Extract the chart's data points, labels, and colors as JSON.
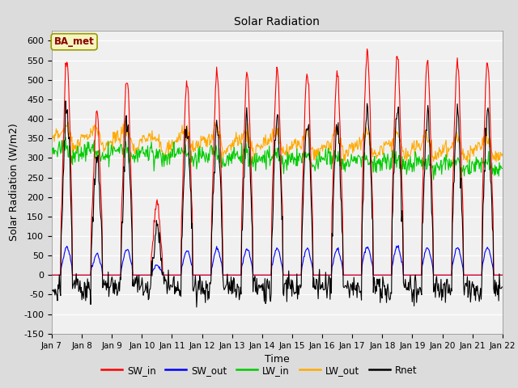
{
  "title": "Solar Radiation",
  "xlabel": "Time",
  "ylabel": "Solar Radiation (W/m2)",
  "ylim": [
    -150,
    625
  ],
  "num_days": 15,
  "annotation": "BA_met",
  "colors": {
    "SW_in": "#ff0000",
    "SW_out": "#0000ff",
    "LW_in": "#00cc00",
    "LW_out": "#ffaa00",
    "Rnet": "#000000"
  },
  "background_color": "#dcdcdc",
  "plot_bg": "#f0f0f0",
  "linewidth": 0.8,
  "legend_labels": [
    "SW_in",
    "SW_out",
    "LW_in",
    "LW_out",
    "Rnet"
  ],
  "SW_in_peaks": [
    550,
    415,
    510,
    178,
    490,
    520,
    515,
    525,
    515,
    520,
    575,
    565,
    550,
    550,
    550
  ],
  "pts_per_day": 48
}
